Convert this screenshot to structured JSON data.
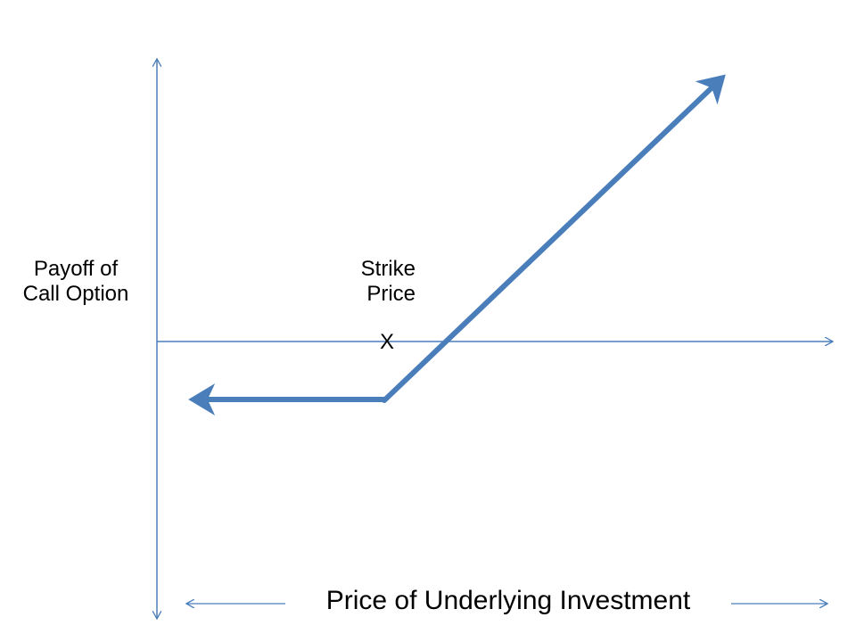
{
  "y_axis_label": {
    "line1": "Payoff of",
    "line2": "Call Option"
  },
  "strike_label": {
    "line1": "Strike",
    "line2": "Price"
  },
  "strike_marker": "X",
  "x_axis_label": "Price of Underlying  Investment",
  "colors": {
    "axis": "#4a7ebb",
    "payoff_line": "#4a7ebb",
    "text": "#000000",
    "background": "#ffffff"
  }
}
